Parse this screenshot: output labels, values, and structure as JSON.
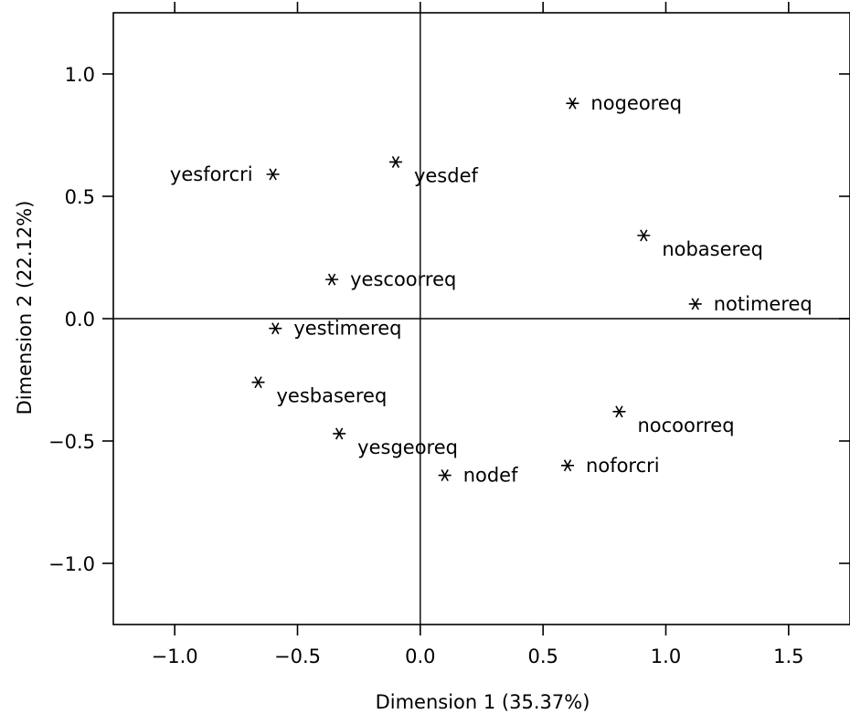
{
  "chart_data": {
    "type": "scatter",
    "xlabel": "Dimension 1 (35.37%)",
    "ylabel": "Dimension 2 (22.12%)",
    "xlim": [
      -1.25,
      1.75
    ],
    "ylim": [
      -1.25,
      1.25
    ],
    "xticks": [
      -1.0,
      -0.5,
      0.0,
      0.5,
      1.0,
      1.5
    ],
    "xtick_labels": [
      "−1.0",
      "−0.5",
      "0.0",
      "0.5",
      "1.0",
      "1.5"
    ],
    "yticks": [
      1.0,
      0.5,
      0.0,
      -0.5,
      -1.0
    ],
    "ytick_labels": [
      "1.0",
      "0.5",
      "0.0",
      "−0.5",
      "−1.0"
    ],
    "marker": "asterisk",
    "reference_lines": {
      "x": 0,
      "y": 0
    },
    "points": [
      {
        "label": "nogeoreq",
        "x": 0.62,
        "y": 0.88,
        "label_side": "right"
      },
      {
        "label": "yesforcri",
        "x": -0.6,
        "y": 0.59,
        "label_side": "left"
      },
      {
        "label": "yesdef",
        "x": -0.1,
        "y": 0.64,
        "label_side": "below-right"
      },
      {
        "label": "nobasereq",
        "x": 0.91,
        "y": 0.34,
        "label_side": "below-right"
      },
      {
        "label": "yescoorreq",
        "x": -0.36,
        "y": 0.16,
        "label_side": "right"
      },
      {
        "label": "notimereq",
        "x": 1.12,
        "y": 0.06,
        "label_side": "right"
      },
      {
        "label": "yestimereq",
        "x": -0.59,
        "y": -0.04,
        "label_side": "right"
      },
      {
        "label": "yesbasereq",
        "x": -0.66,
        "y": -0.26,
        "label_side": "below-right"
      },
      {
        "label": "nocoorreq",
        "x": 0.81,
        "y": -0.38,
        "label_side": "below-right"
      },
      {
        "label": "yesgeoreq",
        "x": -0.33,
        "y": -0.47,
        "label_side": "below-right"
      },
      {
        "label": "nodef",
        "x": 0.1,
        "y": -0.64,
        "label_side": "right"
      },
      {
        "label": "noforcri",
        "x": 0.6,
        "y": -0.6,
        "label_side": "right"
      }
    ]
  }
}
